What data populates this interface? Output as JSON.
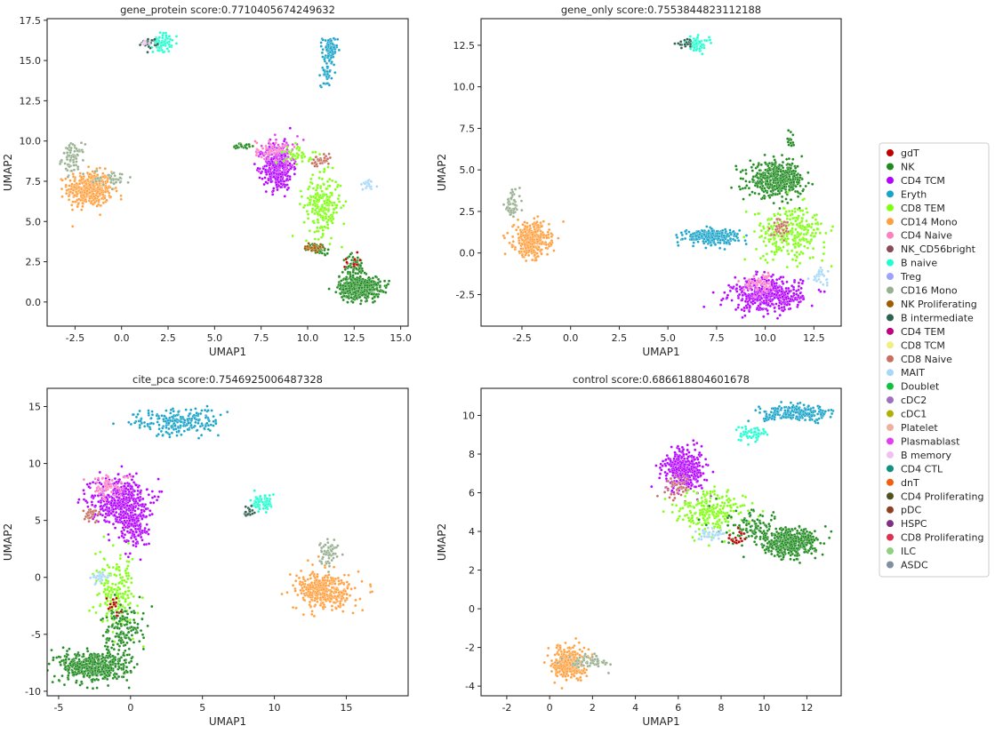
{
  "palette": {
    "gdT": "#c00000",
    "NK": "#1f8a1f",
    "CD4 TCM": "#b300ff",
    "Eryth": "#1aa3c8",
    "CD8 TEM": "#80ff10",
    "CD14 Mono": "#ffa040",
    "CD4 Naive": "#ff80c0",
    "NK_CD56bright": "#8a4a5a",
    "B naive": "#20ffd0",
    "Treg": "#a0a0ff",
    "CD16 Mono": "#98b090",
    "NK Proliferating": "#a05a00",
    "B intermediate": "#2f6050",
    "CD4 TEM": "#c00080",
    "CD8 TCM": "#f0f080",
    "CD8 Naive": "#c87060",
    "MAIT": "#a8d8f8",
    "Doublet": "#10c040",
    "cDC2": "#a070c0",
    "cDC1": "#b0b000",
    "Platelet": "#f0b0a0",
    "Plasmablast": "#e040f0",
    "B memory": "#f0c0f0",
    "CD4 CTL": "#109080",
    "dnT": "#f06010",
    "CD4 Proliferating": "#505020",
    "pDC": "#904020",
    "HSPC": "#803080",
    "CD8 Proliferating": "#e03050",
    "ILC": "#90d080",
    "ASDC": "#8090a0"
  },
  "legend": {
    "entries": [
      "gdT",
      "NK",
      "CD4 TCM",
      "Eryth",
      "CD8 TEM",
      "CD14 Mono",
      "CD4 Naive",
      "NK_CD56bright",
      "B naive",
      "Treg",
      "CD16 Mono",
      "NK Proliferating",
      "B intermediate",
      "CD4 TEM",
      "CD8 TCM",
      "CD8 Naive",
      "MAIT",
      "Doublet",
      "cDC2",
      "cDC1",
      "Platelet",
      "Plasmablast",
      "B memory",
      "CD4 CTL",
      "dnT",
      "CD4 Proliferating",
      "pDC",
      "HSPC",
      "CD8 Proliferating",
      "ILC",
      "ASDC"
    ]
  },
  "chart_data": [
    {
      "type": "scatter",
      "title": "gene_protein score:0.7710405674249632",
      "xlabel": "UMAP1",
      "ylabel": "UMAP2",
      "xlim": [
        -4,
        15.4
      ],
      "ylim": [
        -1.5,
        17.6
      ],
      "xticks": [
        -2.5,
        0.0,
        2.5,
        5.0,
        7.5,
        10.0,
        12.5,
        15.0
      ],
      "yticks": [
        0.0,
        2.5,
        5.0,
        7.5,
        10.0,
        12.5,
        15.0,
        17.5
      ],
      "grid": false,
      "clusters": [
        {
          "label": "CD14 Mono",
          "cx": -1.7,
          "cy": 7.0,
          "sx": 0.6,
          "sy": 0.55,
          "n": 420
        },
        {
          "label": "CD16 Mono",
          "cx": -2.6,
          "cy": 8.9,
          "sx": 0.3,
          "sy": 0.45,
          "n": 80
        },
        {
          "label": "CD16 Mono",
          "cx": -0.5,
          "cy": 7.7,
          "sx": 0.5,
          "sy": 0.25,
          "n": 40
        },
        {
          "label": "B naive",
          "cx": 2.2,
          "cy": 16.1,
          "sx": 0.25,
          "sy": 0.3,
          "n": 70
        },
        {
          "label": "B intermediate",
          "cx": 1.5,
          "cy": 16.1,
          "sx": 0.2,
          "sy": 0.15,
          "n": 25
        },
        {
          "label": "B memory",
          "cx": 1.2,
          "cy": 16.1,
          "sx": 0.1,
          "sy": 0.1,
          "n": 8
        },
        {
          "label": "Eryth",
          "cx": 11.2,
          "cy": 15.6,
          "sx": 0.2,
          "sy": 0.45,
          "n": 80
        },
        {
          "label": "Eryth",
          "cx": 11.0,
          "cy": 14.3,
          "sx": 0.15,
          "sy": 0.45,
          "n": 40
        },
        {
          "label": "CD4 TCM",
          "cx": 8.4,
          "cy": 8.4,
          "sx": 0.4,
          "sy": 0.7,
          "n": 400
        },
        {
          "label": "Plasmablast",
          "cx": 8.6,
          "cy": 9.3,
          "sx": 0.6,
          "sy": 0.5,
          "n": 60
        },
        {
          "label": "CD4 Naive",
          "cx": 8.0,
          "cy": 9.5,
          "sx": 0.4,
          "sy": 0.3,
          "n": 40
        },
        {
          "label": "CD8 TEM",
          "cx": 10.8,
          "cy": 6.0,
          "sx": 0.5,
          "sy": 0.9,
          "n": 230
        },
        {
          "label": "CD8 TEM",
          "cx": 9.5,
          "cy": 9.2,
          "sx": 0.4,
          "sy": 0.3,
          "n": 40
        },
        {
          "label": "CD8 Naive",
          "cx": 10.7,
          "cy": 8.7,
          "sx": 0.3,
          "sy": 0.2,
          "n": 40
        },
        {
          "label": "NK",
          "cx": 12.8,
          "cy": 0.9,
          "sx": 0.55,
          "sy": 0.35,
          "n": 520
        },
        {
          "label": "NK",
          "cx": 12.5,
          "cy": 2.2,
          "sx": 0.3,
          "sy": 0.35,
          "n": 60
        },
        {
          "label": "NK",
          "cx": 10.6,
          "cy": 3.3,
          "sx": 0.3,
          "sy": 0.15,
          "n": 50
        },
        {
          "label": "NK Proliferating",
          "cx": 10.3,
          "cy": 3.4,
          "sx": 0.25,
          "sy": 0.15,
          "n": 30
        },
        {
          "label": "MAIT",
          "cx": 13.2,
          "cy": 7.3,
          "sx": 0.2,
          "sy": 0.15,
          "n": 30
        },
        {
          "label": "NK",
          "cx": 6.6,
          "cy": 9.7,
          "sx": 0.3,
          "sy": 0.1,
          "n": 25
        },
        {
          "label": "gdT",
          "cx": 12.4,
          "cy": 2.5,
          "sx": 0.2,
          "sy": 0.2,
          "n": 12
        }
      ]
    },
    {
      "type": "scatter",
      "title": "gene_only score:0.7553844823112188",
      "xlabel": "UMAP1",
      "ylabel": "UMAP2",
      "xlim": [
        -4.6,
        13.9
      ],
      "ylim": [
        -4.4,
        14.1
      ],
      "xticks": [
        -2.5,
        0.0,
        2.5,
        5.0,
        7.5,
        10.0,
        12.5
      ],
      "yticks": [
        -2.5,
        0.0,
        2.5,
        5.0,
        7.5,
        10.0,
        12.5
      ],
      "grid": false,
      "clusters": [
        {
          "label": "CD14 Mono",
          "cx": -2.0,
          "cy": 0.8,
          "sx": 0.45,
          "sy": 0.5,
          "n": 380
        },
        {
          "label": "CD16 Mono",
          "cx": -3.0,
          "cy": 2.9,
          "sx": 0.2,
          "sy": 0.45,
          "n": 60
        },
        {
          "label": "B naive",
          "cx": 6.5,
          "cy": 12.6,
          "sx": 0.3,
          "sy": 0.2,
          "n": 70
        },
        {
          "label": "B intermediate",
          "cx": 5.9,
          "cy": 12.6,
          "sx": 0.25,
          "sy": 0.1,
          "n": 20
        },
        {
          "label": "NK",
          "cx": 10.6,
          "cy": 4.4,
          "sx": 0.7,
          "sy": 0.5,
          "n": 480
        },
        {
          "label": "Eryth",
          "cx": 7.2,
          "cy": 1.0,
          "sx": 0.7,
          "sy": 0.22,
          "n": 260
        },
        {
          "label": "CD4 TCM",
          "cx": 10.1,
          "cy": -2.5,
          "sx": 0.9,
          "sy": 0.5,
          "n": 480
        },
        {
          "label": "CD8 TEM",
          "cx": 11.3,
          "cy": 1.2,
          "sx": 0.9,
          "sy": 0.8,
          "n": 280
        },
        {
          "label": "CD4 Naive",
          "cx": 9.8,
          "cy": -1.8,
          "sx": 0.4,
          "sy": 0.3,
          "n": 50
        },
        {
          "label": "CD8 Naive",
          "cx": 10.8,
          "cy": 1.6,
          "sx": 0.25,
          "sy": 0.3,
          "n": 40
        },
        {
          "label": "MAIT",
          "cx": 12.8,
          "cy": -1.4,
          "sx": 0.2,
          "sy": 0.2,
          "n": 30
        },
        {
          "label": "NK",
          "cx": 11.3,
          "cy": 6.8,
          "sx": 0.1,
          "sy": 0.3,
          "n": 15
        }
      ]
    },
    {
      "type": "scatter",
      "title": "cite_pca score:0.7546925006487328",
      "xlabel": "UMAP1",
      "ylabel": "UMAP2",
      "xlim": [
        -5.8,
        19.3
      ],
      "ylim": [
        -10.4,
        16.6
      ],
      "xticks": [
        -5,
        0,
        5,
        10,
        15
      ],
      "yticks": [
        -10,
        -5,
        0,
        5,
        10,
        15
      ],
      "grid": false,
      "clusters": [
        {
          "label": "NK",
          "cx": -2.5,
          "cy": -7.8,
          "sx": 1.2,
          "sy": 0.7,
          "n": 500
        },
        {
          "label": "CD4 TCM",
          "cx": -0.8,
          "cy": 6.8,
          "sx": 1.0,
          "sy": 1.0,
          "n": 450
        },
        {
          "label": "CD4 TCM",
          "cx": 0.2,
          "cy": 4.3,
          "sx": 0.5,
          "sy": 0.8,
          "n": 150
        },
        {
          "label": "CD4 Naive",
          "cx": -1.5,
          "cy": 8.0,
          "sx": 0.7,
          "sy": 0.5,
          "n": 60
        },
        {
          "label": "CD8 Naive",
          "cx": -2.8,
          "cy": 5.5,
          "sx": 0.3,
          "sy": 0.3,
          "n": 30
        },
        {
          "label": "Eryth",
          "cx": 3.2,
          "cy": 13.6,
          "sx": 1.5,
          "sy": 0.6,
          "n": 220
        },
        {
          "label": "B naive",
          "cx": 9.2,
          "cy": 6.6,
          "sx": 0.4,
          "sy": 0.4,
          "n": 70
        },
        {
          "label": "B intermediate",
          "cx": 8.3,
          "cy": 5.8,
          "sx": 0.2,
          "sy": 0.3,
          "n": 20
        },
        {
          "label": "CD14 Mono",
          "cx": 13.5,
          "cy": -1.2,
          "sx": 1.0,
          "sy": 0.8,
          "n": 380
        },
        {
          "label": "CD16 Mono",
          "cx": 13.8,
          "cy": 2.2,
          "sx": 0.3,
          "sy": 0.6,
          "n": 60
        },
        {
          "label": "CD8 TEM",
          "cx": -1.0,
          "cy": -1.5,
          "sx": 0.7,
          "sy": 1.6,
          "n": 200
        },
        {
          "label": "NK",
          "cx": -0.5,
          "cy": -4.5,
          "sx": 0.7,
          "sy": 1.0,
          "n": 140
        },
        {
          "label": "MAIT",
          "cx": -2.2,
          "cy": 0.0,
          "sx": 0.3,
          "sy": 0.2,
          "n": 30
        },
        {
          "label": "gdT",
          "cx": -1.2,
          "cy": -2.5,
          "sx": 0.3,
          "sy": 0.5,
          "n": 15
        }
      ]
    },
    {
      "type": "scatter",
      "title": "control score:0.686618804601678",
      "xlabel": "UMAP1",
      "ylabel": "UMAP2",
      "xlim": [
        -3.2,
        13.6
      ],
      "ylim": [
        -4.5,
        11.4
      ],
      "xticks": [
        -2,
        0,
        2,
        4,
        6,
        8,
        10,
        12
      ],
      "yticks": [
        -4,
        -2,
        0,
        2,
        4,
        6,
        8,
        10
      ],
      "grid": false,
      "clusters": [
        {
          "label": "CD14 Mono",
          "cx": 0.9,
          "cy": -2.8,
          "sx": 0.35,
          "sy": 0.4,
          "n": 340
        },
        {
          "label": "CD16 Mono",
          "cx": 1.8,
          "cy": -2.7,
          "sx": 0.5,
          "sy": 0.2,
          "n": 60
        },
        {
          "label": "CD4 TCM",
          "cx": 6.3,
          "cy": 7.2,
          "sx": 0.5,
          "sy": 0.55,
          "n": 380
        },
        {
          "label": "CD8 Naive",
          "cx": 6.0,
          "cy": 6.3,
          "sx": 0.3,
          "sy": 0.3,
          "n": 40
        },
        {
          "label": "CD8 TEM",
          "cx": 7.5,
          "cy": 5.0,
          "sx": 0.8,
          "sy": 0.6,
          "n": 240
        },
        {
          "label": "NK",
          "cx": 11.2,
          "cy": 3.4,
          "sx": 0.6,
          "sy": 0.35,
          "n": 430
        },
        {
          "label": "NK",
          "cx": 9.5,
          "cy": 4.1,
          "sx": 0.8,
          "sy": 0.5,
          "n": 120
        },
        {
          "label": "Eryth",
          "cx": 11.6,
          "cy": 10.1,
          "sx": 0.8,
          "sy": 0.2,
          "n": 220
        },
        {
          "label": "B naive",
          "cx": 9.4,
          "cy": 9.1,
          "sx": 0.4,
          "sy": 0.2,
          "n": 60
        },
        {
          "label": "MAIT",
          "cx": 7.5,
          "cy": 3.9,
          "sx": 0.4,
          "sy": 0.15,
          "n": 40
        },
        {
          "label": "gdT",
          "cx": 8.8,
          "cy": 3.7,
          "sx": 0.2,
          "sy": 0.15,
          "n": 20
        }
      ]
    }
  ]
}
